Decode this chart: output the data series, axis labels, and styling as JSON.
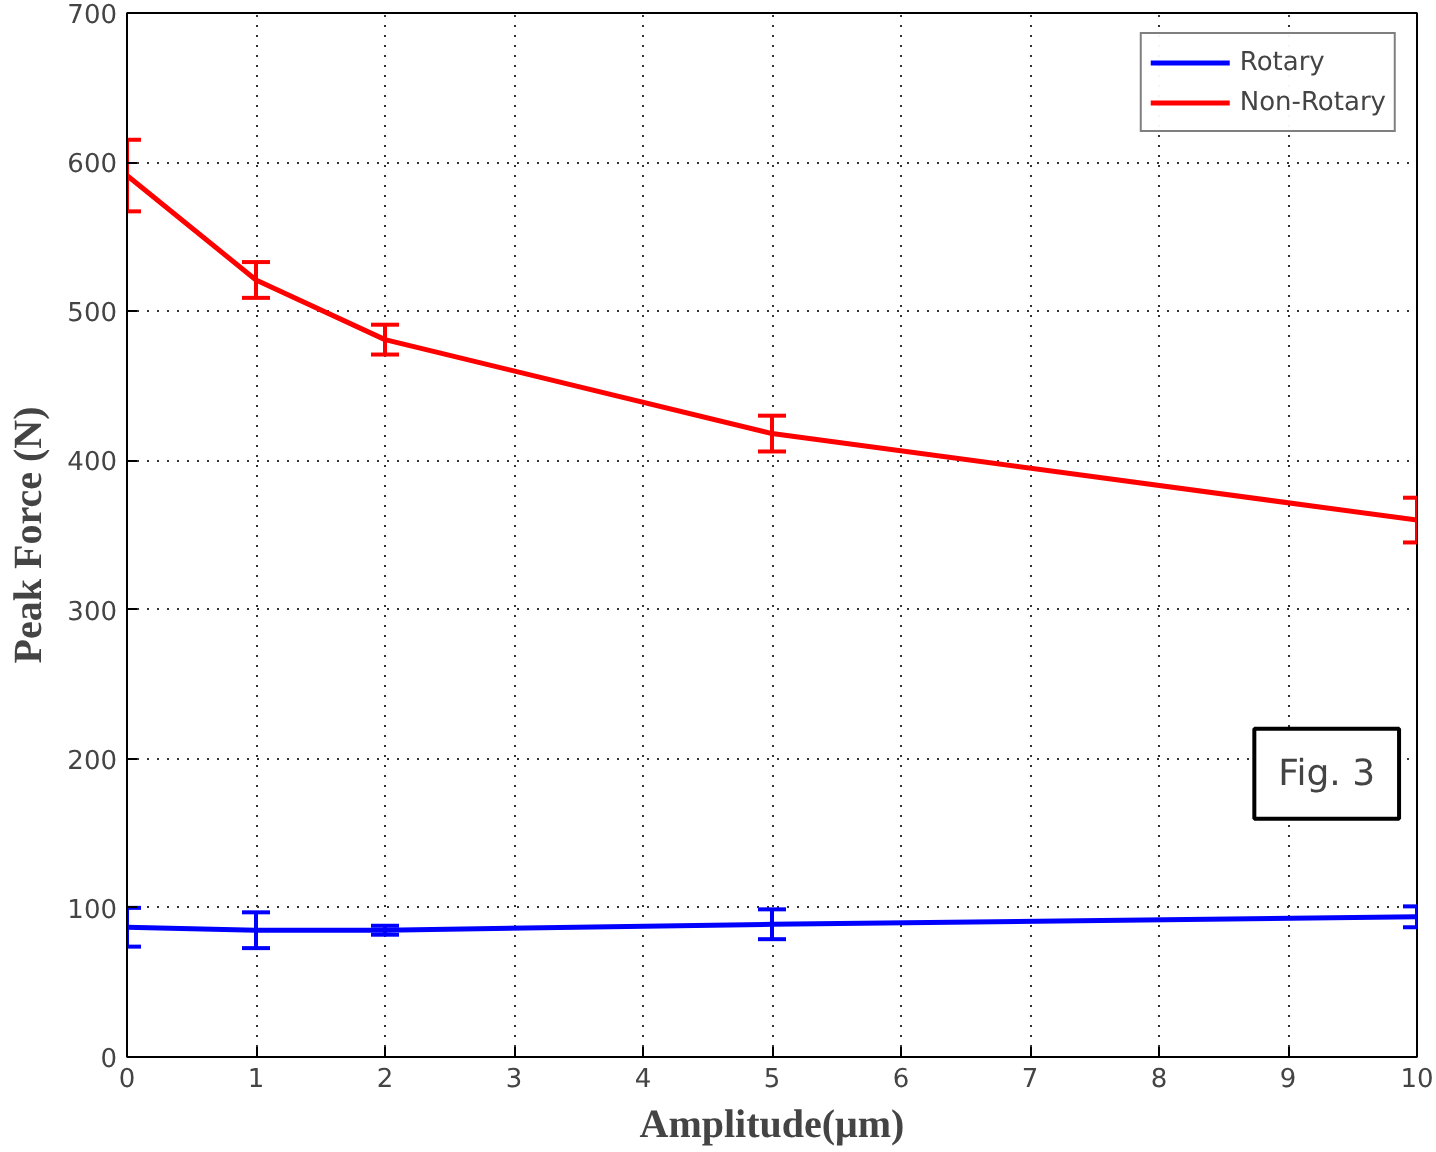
{
  "chart_data": {
    "type": "line",
    "xlabel": "Amplitude(μm)",
    "ylabel": "Peak Force (N)",
    "x": [
      0,
      1,
      2,
      5,
      10
    ],
    "series": [
      {
        "name": "Rotary",
        "color": "#0000ff",
        "values": [
          87,
          85,
          85,
          89,
          94
        ],
        "errors": [
          13,
          12,
          3,
          10,
          7
        ]
      },
      {
        "name": "Non-Rotary",
        "color": "#ff0000",
        "values": [
          591,
          521,
          481,
          418,
          360
        ],
        "errors": [
          24,
          12,
          10,
          12,
          15
        ]
      }
    ],
    "xlim": [
      0,
      10
    ],
    "ylim": [
      0,
      700
    ],
    "xticks": [
      0,
      1,
      2,
      3,
      4,
      5,
      6,
      7,
      8,
      9,
      10
    ],
    "yticks": [
      0,
      100,
      200,
      300,
      400,
      500,
      600,
      700
    ],
    "grid": true,
    "legend": "top right",
    "marker": "none",
    "line_style": "solid",
    "annotations": [
      "Fig. 3"
    ]
  }
}
